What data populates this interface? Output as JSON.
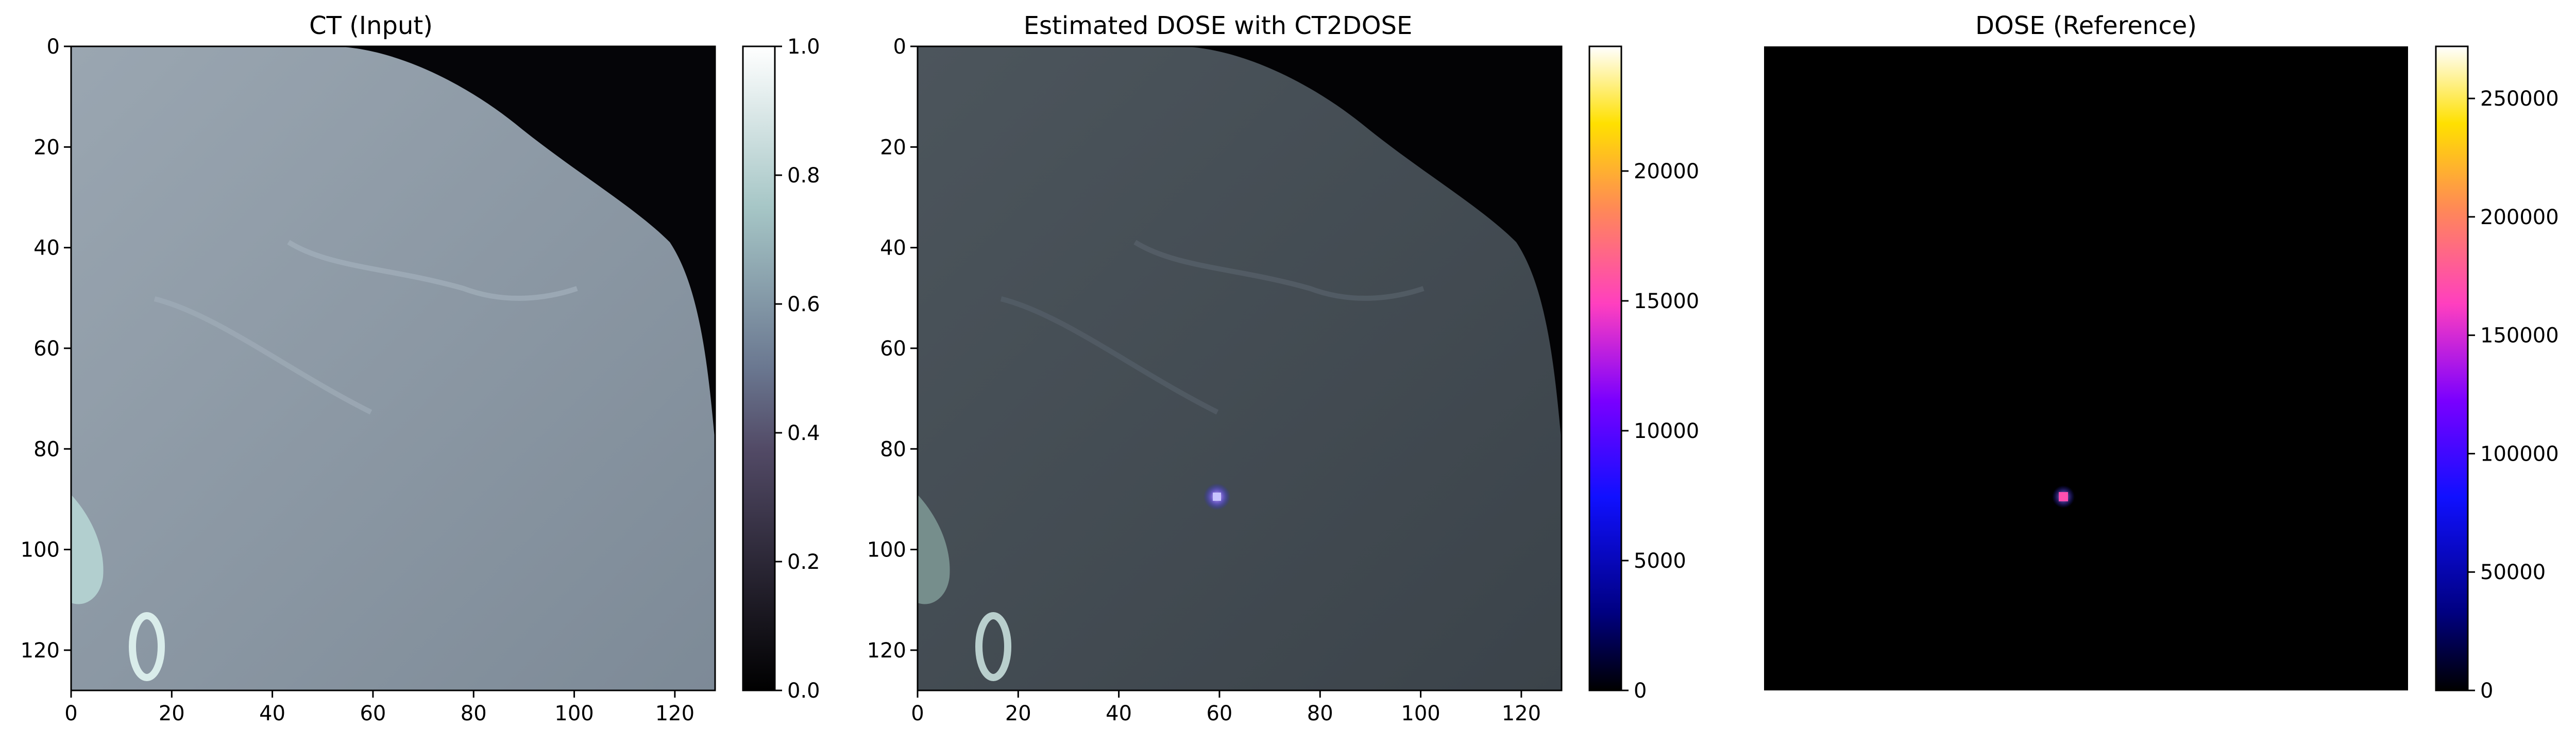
{
  "chart_data": [
    {
      "type": "heatmap",
      "title": "CT (Input)",
      "colormap": "bone",
      "x_ticks": [
        "0",
        "20",
        "40",
        "60",
        "80",
        "100",
        "120"
      ],
      "y_ticks": [
        "0",
        "20",
        "40",
        "60",
        "80",
        "100",
        "120"
      ],
      "xlim": [
        0,
        128
      ],
      "ylim": [
        128,
        0
      ],
      "colorbar": {
        "range": [
          0,
          1
        ],
        "ticks": [
          "0.0",
          "0.2",
          "0.4",
          "0.6",
          "0.8",
          "1.0"
        ]
      },
      "description_values": {
        "tissue_level": 0.6,
        "background_level": 0.05
      }
    },
    {
      "type": "heatmap",
      "title": "Estimated DOSE with CT2DOSE",
      "colormap": "gnuplot2 over bone",
      "x_ticks": [
        "0",
        "20",
        "40",
        "60",
        "80",
        "100",
        "120"
      ],
      "y_ticks": [
        "0",
        "20",
        "40",
        "60",
        "80",
        "100",
        "120"
      ],
      "xlim": [
        0,
        128
      ],
      "ylim": [
        128,
        0
      ],
      "colorbar": {
        "range": [
          0,
          24800
        ],
        "ticks": [
          "0",
          "5000",
          "10000",
          "15000",
          "20000"
        ]
      },
      "hotspot": {
        "x": 59.5,
        "y": 89.5
      }
    },
    {
      "type": "heatmap",
      "title": "DOSE (Reference)",
      "colormap": "gnuplot2",
      "xlim": [
        0,
        128
      ],
      "ylim": [
        128,
        0
      ],
      "colorbar": {
        "range": [
          0,
          272000
        ],
        "ticks": [
          "0",
          "50000",
          "100000",
          "150000",
          "200000",
          "250000"
        ]
      },
      "hotspot": {
        "x": 59.5,
        "y": 89.5
      }
    }
  ],
  "colors": {
    "bone_top": "#fdffff",
    "bone_mid": "#a6c6c6",
    "bone_low": "#585273",
    "bone_bottom": "#000000",
    "ct_tissue": "#8b99a6",
    "ct_tissue_dark": "#7f8c98",
    "est_tissue": "#414a50",
    "dose_bg": "#000000"
  }
}
